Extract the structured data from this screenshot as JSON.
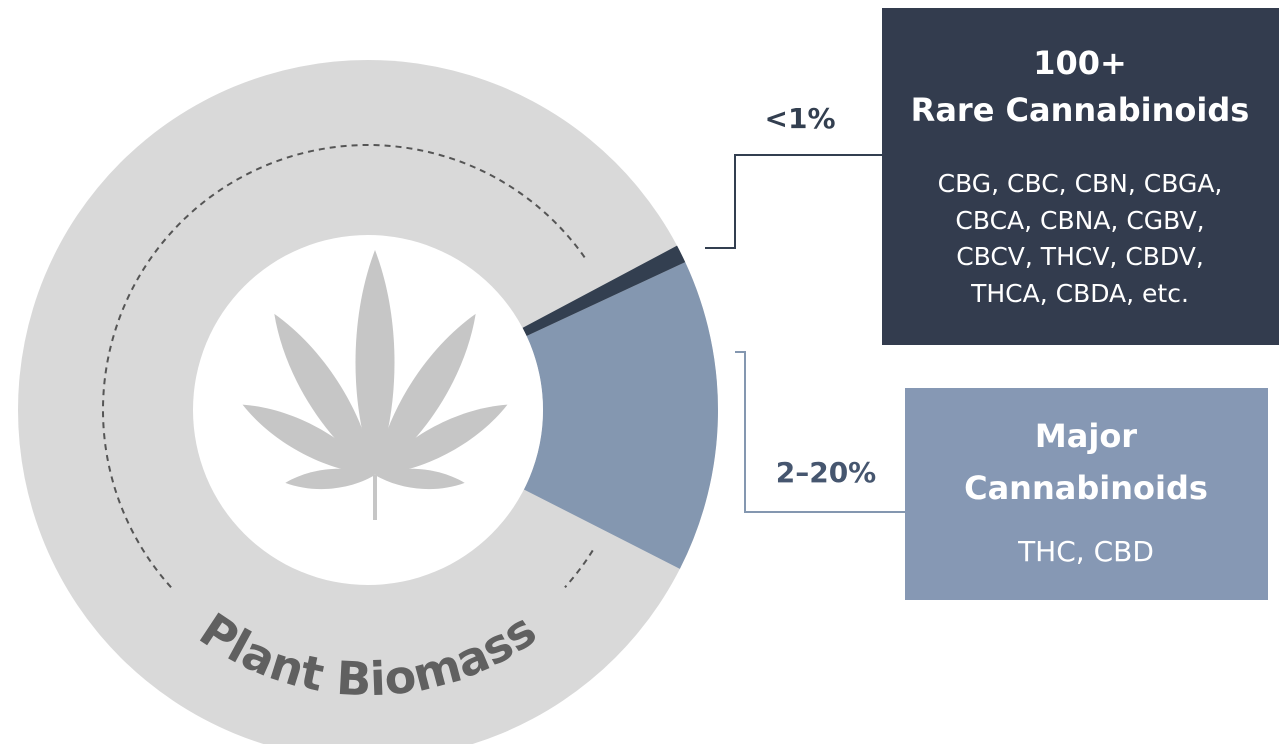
{
  "ring_label": "Plant Biomass",
  "rare": {
    "percent": "<1%",
    "title": "100+",
    "subtitle": "Rare Cannabinoids",
    "list": [
      "CBG, CBC, CBN, CBGA,",
      "CBCA, CBNA, CGBV,",
      "CBCV, THCV, CBDV,",
      "THCA, CBDA, etc."
    ]
  },
  "major": {
    "percent": "2–20%",
    "title": "Major",
    "subtitle": "Cannabinoids",
    "list": [
      "THC, CBD"
    ]
  }
}
